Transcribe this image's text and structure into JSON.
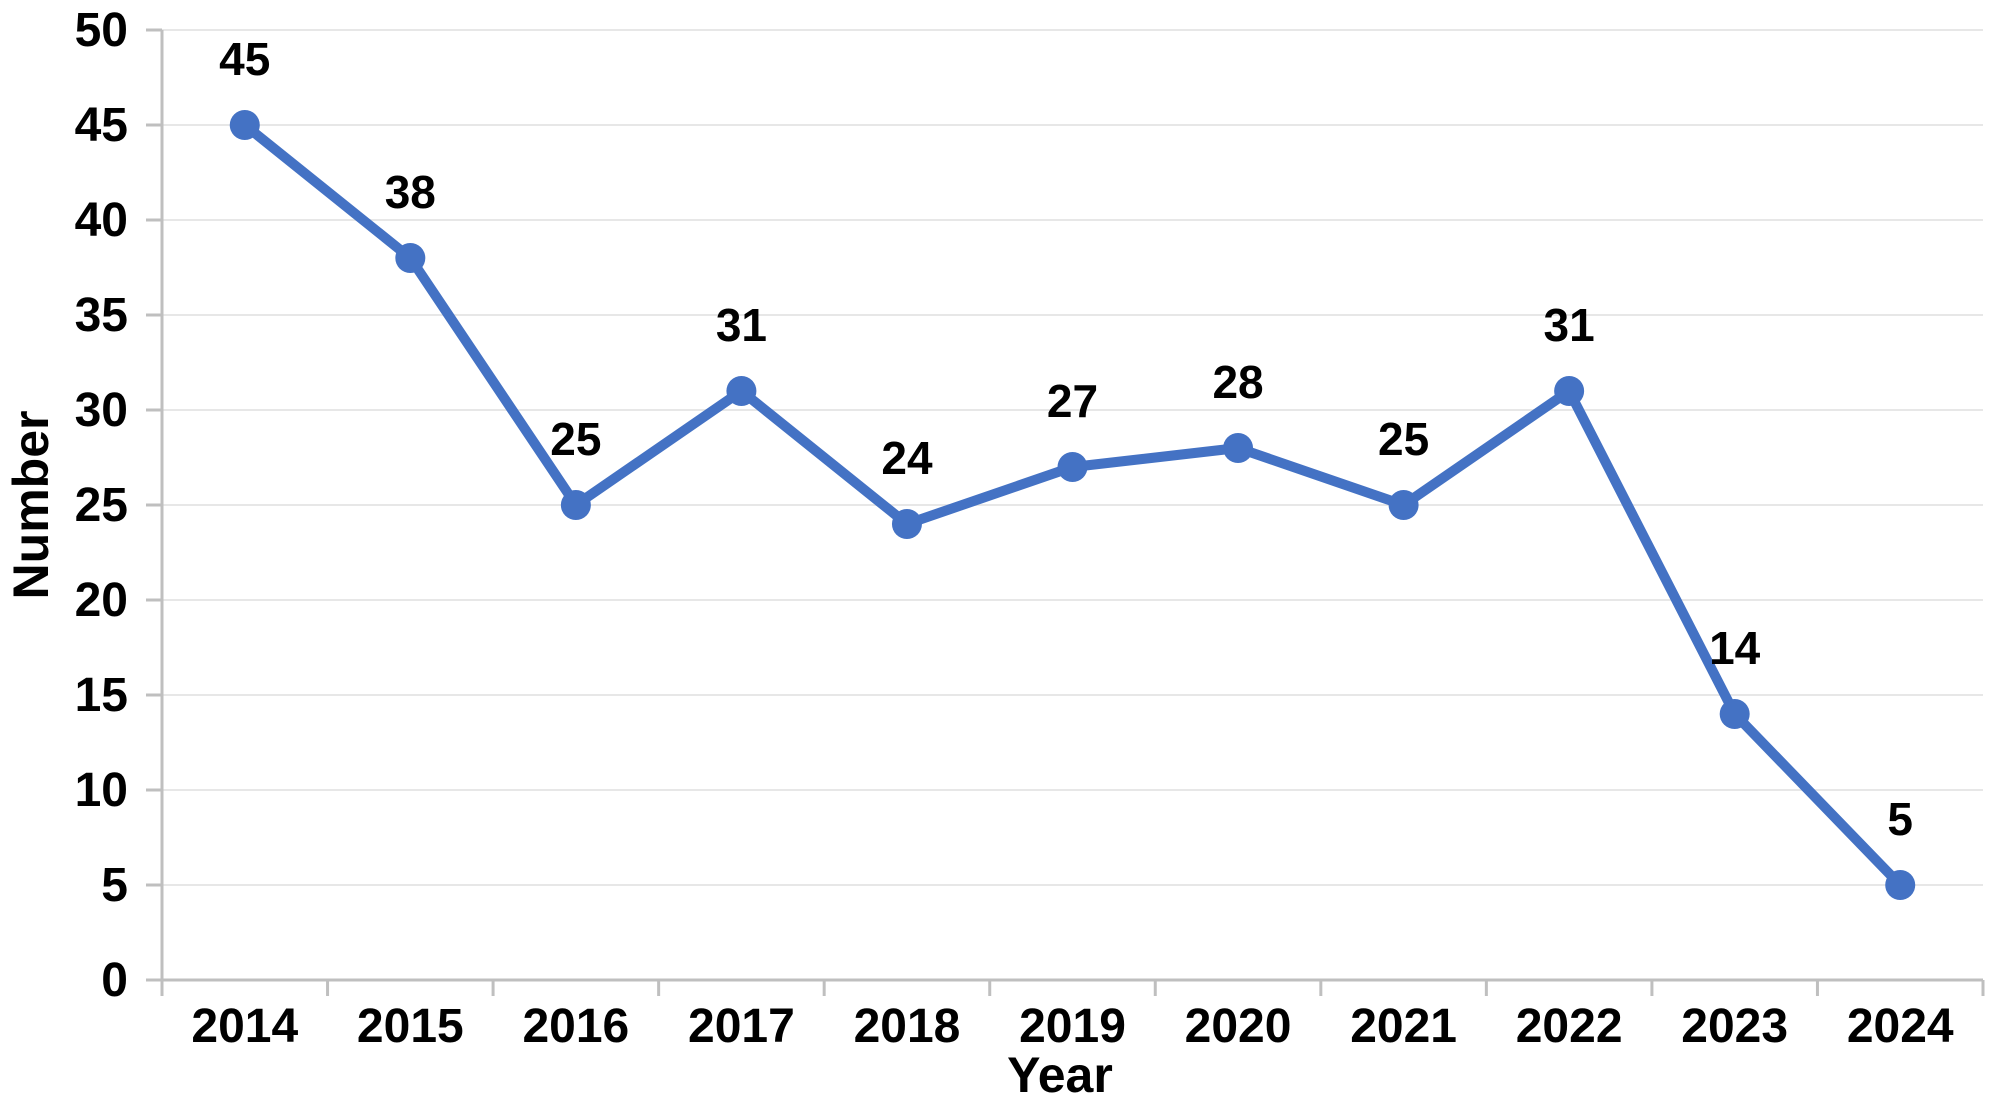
{
  "chart_data": {
    "type": "line",
    "title": "",
    "xlabel": "Year",
    "ylabel": "Number",
    "categories": [
      "2014",
      "2015",
      "2016",
      "2017",
      "2018",
      "2019",
      "2020",
      "2021",
      "2022",
      "2023",
      "2024"
    ],
    "series": [
      {
        "name": "Number",
        "values": [
          45,
          38,
          25,
          31,
          24,
          27,
          28,
          25,
          31,
          14,
          5
        ]
      }
    ],
    "data_labels": [
      "45",
      "38",
      "25",
      "31",
      "24",
      "27",
      "28",
      "25",
      "31",
      "14",
      "5"
    ],
    "ylim": [
      0,
      50
    ],
    "ytick_step": 5,
    "yticks": [
      "0",
      "5",
      "10",
      "15",
      "20",
      "25",
      "30",
      "35",
      "40",
      "45",
      "50"
    ],
    "grid": "horizontal",
    "legend": "none",
    "colors": {
      "line": "#4472C4",
      "marker": "#4472C4",
      "grid": "#E7E7E7",
      "axis": "#BFBFBF",
      "text": "#000000",
      "background": "#FFFFFF"
    }
  }
}
